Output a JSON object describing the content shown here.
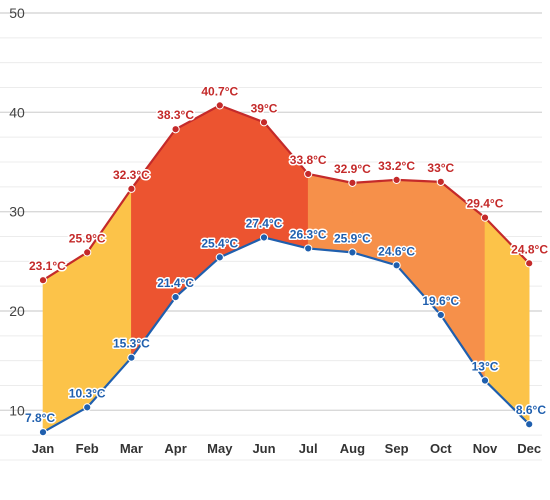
{
  "chart_data": {
    "type": "area",
    "categories": [
      "Jan",
      "Feb",
      "Mar",
      "Apr",
      "May",
      "Jun",
      "Jul",
      "Aug",
      "Sep",
      "Oct",
      "Nov",
      "Dec"
    ],
    "series": [
      {
        "values": [
          23.1,
          25.9,
          32.3,
          38.3,
          40.7,
          39,
          33.8,
          32.9,
          33.2,
          33,
          29.4,
          24.8
        ],
        "labels": [
          "23.1°C",
          "25.9°C",
          "32.3°C",
          "38.3°C",
          "40.7°C",
          "39°C",
          "33.8°C",
          "32.9°C",
          "33.2°C",
          "33°C",
          "29.4°C",
          "24.8°C"
        ],
        "color": "#c42a2a"
      },
      {
        "values": [
          7.8,
          10.3,
          15.3,
          21.4,
          25.4,
          27.4,
          26.3,
          25.9,
          24.6,
          19.6,
          13,
          8.6
        ],
        "labels": [
          "7.8°C",
          "10.3°C",
          "15.3°C",
          "21.4°C",
          "25.4°C",
          "27.4°C",
          "26.3°C",
          "25.9°C",
          "24.6°C",
          "19.6°C",
          "13°C",
          "8.6°C"
        ],
        "color": "#1f5fae"
      }
    ],
    "yticks": [
      "10",
      "20",
      "30",
      "40",
      "50"
    ],
    "ylim": [
      5,
      50
    ],
    "grid": true,
    "fill_colors": {
      "cool": "#fcc349",
      "warm": "#f6904a",
      "hot": "#ec5430"
    }
  }
}
